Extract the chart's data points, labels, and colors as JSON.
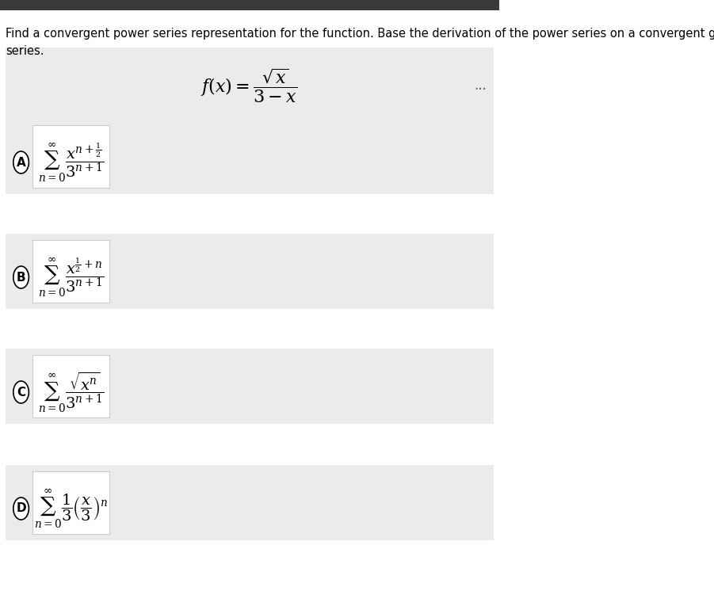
{
  "title_text": "Find a convergent power series representation for the function. Base the derivation of the power series on a convergent geometric\nseries.",
  "question_formula": "f(x) = \\dfrac{\\sqrt{x}}{3 - x}",
  "bg_color": "#f5f5f5",
  "white_color": "#ffffff",
  "dark_bg": "#3a3a3a",
  "option_box_color": "#f0f0f0",
  "option_A_formula": "\\sum_{n=0}^{\\infty} \\dfrac{x^{n+\\frac{1}{2}}}{3^{n+1}}",
  "option_B_formula": "\\sum_{n=0}^{\\infty} \\dfrac{x^{\\frac{1}{2}+n}}{3^{n+1}}",
  "option_C_formula": "\\sum_{n=0}^{\\infty} \\dfrac{\\sqrt{x^n}}{3^{n+1}}",
  "option_D_formula": "\\sum_{n=0}^{\\infty} \\dfrac{1}{3}\\left(\\dfrac{x}{3}\\right)^n",
  "options": [
    "A",
    "B",
    "C",
    "D"
  ],
  "dots_color": "#555555"
}
